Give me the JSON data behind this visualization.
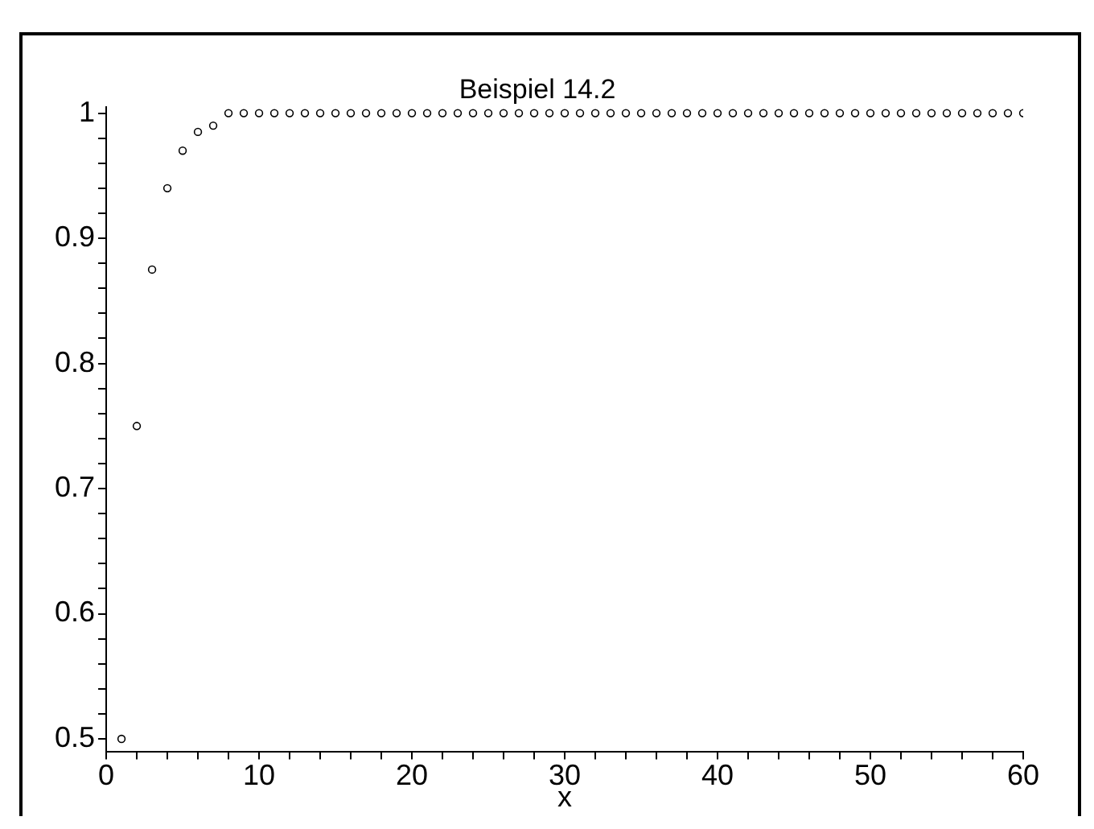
{
  "chart_data": {
    "type": "scatter",
    "title": "Beispiel 14.2",
    "xlabel": "x",
    "x": [
      1,
      2,
      3,
      4,
      5,
      6,
      7,
      8,
      9,
      10,
      11,
      12,
      13,
      14,
      15,
      16,
      17,
      18,
      19,
      20,
      21,
      22,
      23,
      24,
      25,
      26,
      27,
      28,
      29,
      30,
      31,
      32,
      33,
      34,
      35,
      36,
      37,
      38,
      39,
      40,
      41,
      42,
      43,
      44,
      45,
      46,
      47,
      48,
      49,
      50,
      51,
      52,
      53,
      54,
      55,
      56,
      57,
      58,
      59,
      60
    ],
    "series": [
      {
        "color": "#000000",
        "values": [
          0.5,
          0.75,
          0.875,
          0.94,
          0.97,
          0.985,
          0.99,
          1,
          1,
          1,
          1,
          1,
          1,
          1,
          1,
          1,
          1,
          1,
          1,
          1,
          1,
          1,
          1,
          1,
          1,
          1,
          1,
          1,
          1,
          1,
          1,
          1,
          1,
          1,
          1,
          1,
          1,
          1,
          1,
          1,
          1,
          1,
          1,
          1,
          1,
          1,
          1,
          1,
          1,
          1,
          1,
          1,
          1,
          1,
          1,
          1,
          1,
          1,
          1,
          1
        ]
      }
    ],
    "xlim": [
      0,
      60
    ],
    "ylim": [
      0.49,
      1.005
    ],
    "xticks": [
      0,
      {
        "value": 2,
        "label": null
      },
      {
        "value": 4,
        "label": null
      },
      {
        "value": 6,
        "label": null
      },
      {
        "value": 8,
        "label": null
      },
      10,
      {
        "value": 12,
        "label": null
      },
      {
        "value": 14,
        "label": null
      },
      {
        "value": 16,
        "label": null
      },
      {
        "value": 18,
        "label": null
      },
      20,
      {
        "value": 22,
        "label": null
      },
      {
        "value": 24,
        "label": null
      },
      {
        "value": 26,
        "label": null
      },
      {
        "value": 28,
        "label": null
      },
      30,
      {
        "value": 32,
        "label": null
      },
      {
        "value": 34,
        "label": null
      },
      {
        "value": 36,
        "label": null
      },
      {
        "value": 38,
        "label": null
      },
      40,
      {
        "value": 42,
        "label": null
      },
      {
        "value": 44,
        "label": null
      },
      {
        "value": 46,
        "label": null
      },
      {
        "value": 48,
        "label": null
      },
      50,
      {
        "value": 52,
        "label": null
      },
      {
        "value": 54,
        "label": null
      },
      {
        "value": 56,
        "label": null
      },
      {
        "value": 58,
        "label": null
      },
      60
    ],
    "yticks": [
      0.5,
      {
        "value": 0.52,
        "label": null
      },
      {
        "value": 0.54,
        "label": null
      },
      {
        "value": 0.56,
        "label": null
      },
      {
        "value": 0.58,
        "label": null
      },
      0.6,
      {
        "value": 0.62,
        "label": null
      },
      {
        "value": 0.64,
        "label": null
      },
      {
        "value": 0.66,
        "label": null
      },
      {
        "value": 0.68,
        "label": null
      },
      0.7,
      {
        "value": 0.72,
        "label": null
      },
      {
        "value": 0.74,
        "label": null
      },
      {
        "value": 0.76,
        "label": null
      },
      {
        "value": 0.78,
        "label": null
      },
      0.8,
      {
        "value": 0.82,
        "label": null
      },
      {
        "value": 0.84,
        "label": null
      },
      {
        "value": 0.86,
        "label": null
      },
      {
        "value": 0.88,
        "label": null
      },
      0.9,
      {
        "value": 0.92,
        "label": null
      },
      {
        "value": 0.94,
        "label": null
      },
      {
        "value": 0.96,
        "label": null
      },
      {
        "value": 0.98,
        "label": null
      },
      1
    ],
    "grid": false,
    "legend": false,
    "marker": "circle"
  }
}
